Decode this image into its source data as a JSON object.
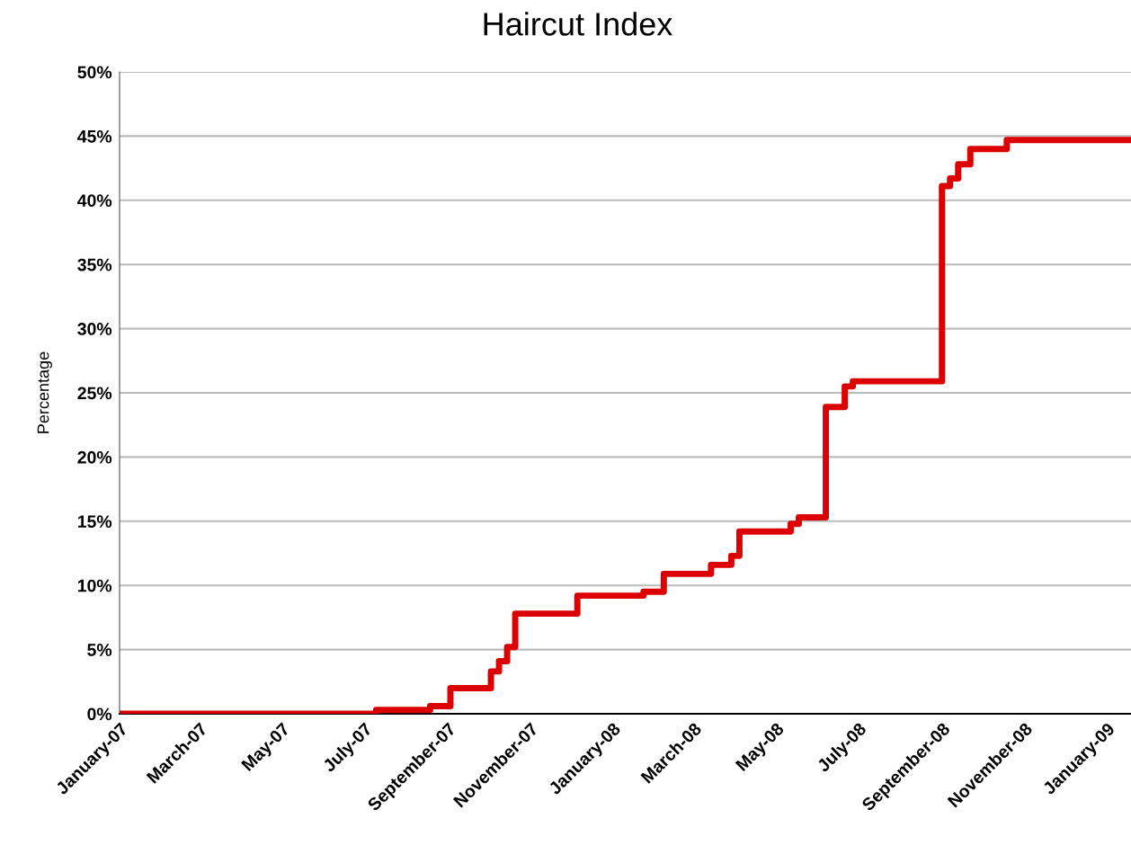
{
  "chart_data": {
    "type": "step",
    "title": "Haircut Index",
    "ylabel": "Percentage",
    "x": [
      "2007-01-01",
      "2007-07-10",
      "2007-08-19",
      "2007-09-03",
      "2007-10-03",
      "2007-10-09",
      "2007-10-15",
      "2007-10-21",
      "2007-12-06",
      "2008-01-24",
      "2008-02-08",
      "2008-03-14",
      "2008-03-29",
      "2008-04-04",
      "2008-05-12",
      "2008-05-18",
      "2008-06-07",
      "2008-06-21",
      "2008-06-27",
      "2008-09-01",
      "2008-09-07",
      "2008-09-13",
      "2008-09-22",
      "2008-10-19",
      "2009-01-19"
    ],
    "series": [
      {
        "color": "#dd0000",
        "values": [
          0,
          0.3,
          0.6,
          2.0,
          3.3,
          4.1,
          5.2,
          7.8,
          9.2,
          9.5,
          10.9,
          11.6,
          12.3,
          14.2,
          14.8,
          15.3,
          23.9,
          25.5,
          25.9,
          41.1,
          41.7,
          42.8,
          44.0,
          44.7,
          44.7
        ]
      }
    ],
    "xlim": [
      "2007-01-01",
      "2009-01-19"
    ],
    "xticks": [
      {
        "value": "2007-01-01",
        "label": "January-07"
      },
      {
        "value": "2007-03-01",
        "label": "March-07"
      },
      {
        "value": "2007-05-01",
        "label": "May-07"
      },
      {
        "value": "2007-07-01",
        "label": "July-07"
      },
      {
        "value": "2007-09-01",
        "label": "September-07"
      },
      {
        "value": "2007-11-01",
        "label": "November-07"
      },
      {
        "value": "2008-01-01",
        "label": "January-08"
      },
      {
        "value": "2008-03-01",
        "label": "March-08"
      },
      {
        "value": "2008-05-01",
        "label": "May-08"
      },
      {
        "value": "2008-07-01",
        "label": "July-08"
      },
      {
        "value": "2008-09-01",
        "label": "September-08"
      },
      {
        "value": "2008-11-01",
        "label": "November-08"
      },
      {
        "value": "2009-01-01",
        "label": "January-09"
      }
    ],
    "ylim": [
      0,
      50
    ],
    "yticks": [
      {
        "value": 0,
        "label": "0%"
      },
      {
        "value": 5,
        "label": "5%"
      },
      {
        "value": 10,
        "label": "10%"
      },
      {
        "value": 15,
        "label": "15%"
      },
      {
        "value": 20,
        "label": "20%"
      },
      {
        "value": 25,
        "label": "25%"
      },
      {
        "value": 30,
        "label": "30%"
      },
      {
        "value": 35,
        "label": "35%"
      },
      {
        "value": 40,
        "label": "40%"
      },
      {
        "value": 45,
        "label": "45%"
      },
      {
        "value": 50,
        "label": "50%"
      }
    ],
    "grid": "y",
    "line_style": "solid",
    "marker": "none"
  }
}
